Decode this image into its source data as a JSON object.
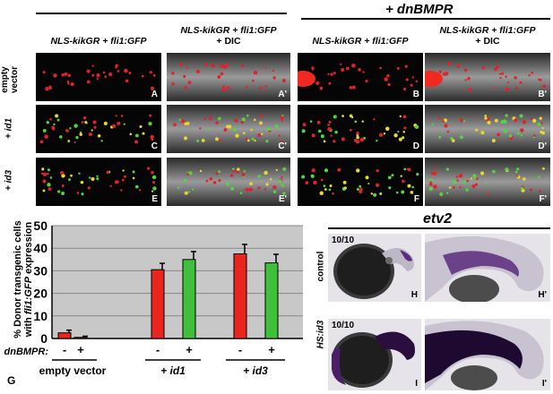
{
  "top_header": {
    "dnbmpr_title": "+ dnBMPR",
    "col_headers": [
      {
        "italic": "NLS-kikGR + fli1:GFP",
        "plain": ""
      },
      {
        "italic": "NLS-kikGR + fli1:GFP",
        "plain": "+ DIC"
      },
      {
        "italic": "NLS-kikGR + fli1:GFP",
        "plain": ""
      },
      {
        "italic": "NLS-kikGR + fli1:GFP",
        "plain": "+ DIC"
      }
    ]
  },
  "row_labels": [
    "empty vector",
    "+ id1",
    "+ id3"
  ],
  "panel_labels": [
    [
      "A",
      "A'",
      "B",
      "B'"
    ],
    [
      "C",
      "C'",
      "D",
      "D'"
    ],
    [
      "E",
      "E'",
      "F",
      "F'"
    ]
  ],
  "chart": {
    "panel_letter": "G",
    "ylabel_line1": "% Donor transgenic cells",
    "ylabel_line2_italic": "fli1:GFP",
    "ylabel_line2_prefix": "with ",
    "ylabel_line2_suffix": " expression",
    "dnbmpr_row_label": "dnBMPR:",
    "group_labels": [
      "empty vector",
      "+ id1",
      "+ id3"
    ],
    "signs": [
      "-",
      "+",
      "-",
      "+",
      "-",
      "+"
    ]
  },
  "chart_data": {
    "type": "bar",
    "categories": [
      "empty vector -",
      "empty vector +",
      "+ id1 -",
      "+ id1 +",
      "+ id3 -",
      "+ id3 +"
    ],
    "values": [
      2.5,
      0.5,
      30.5,
      35,
      37.5,
      33.5
    ],
    "errors": [
      1.2,
      0.5,
      2.8,
      3.5,
      4.2,
      3.8
    ],
    "bar_colors": [
      "#e8261d",
      "#e8261d",
      "#e8261d",
      "#3fbf3a",
      "#e8261d",
      "#3fbf3a"
    ],
    "ylim": [
      0,
      50
    ],
    "yticks": [
      0,
      10,
      20,
      30,
      40,
      50
    ],
    "grid": true
  },
  "ish": {
    "title": "etv2",
    "row_labels": [
      "control",
      "HS:id3"
    ],
    "counts": [
      "10/10",
      "10/10"
    ],
    "panel_labels": [
      [
        "H",
        "H'"
      ],
      [
        "I",
        "I'"
      ]
    ]
  }
}
